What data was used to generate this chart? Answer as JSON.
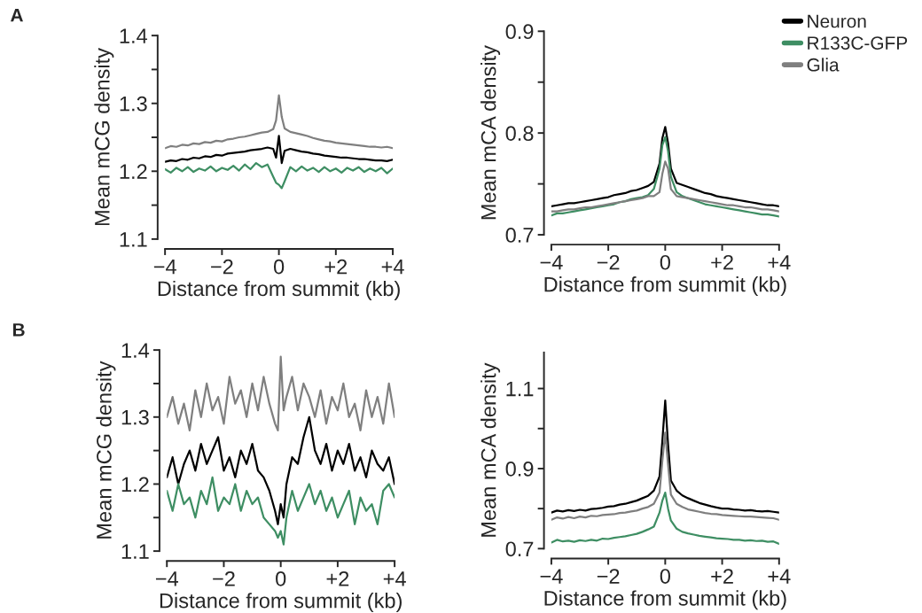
{
  "chart_data": [
    {
      "type": "line",
      "annotations": [
        "A"
      ],
      "xlabel": "Distance from summit (kb)",
      "ylabel": "Mean mCG density",
      "xlim": [
        -4,
        4
      ],
      "xticks": [
        {
          "value": -4,
          "label": "−4"
        },
        {
          "value": -2,
          "label": "−2"
        },
        0,
        {
          "value": 2,
          "label": "+2"
        },
        {
          "value": 4,
          "label": "+4"
        }
      ],
      "ylim": [
        1.1,
        1.4
      ],
      "yticks": [
        1.1,
        {
          "value": 1.15,
          "label": null
        },
        1.2,
        {
          "value": 1.25,
          "label": null
        },
        1.3,
        {
          "value": 1.35,
          "label": null
        },
        1.4
      ],
      "grid": false,
      "legend": false,
      "x": [
        -4,
        -3.8,
        -3.6,
        -3.4,
        -3.2,
        -3,
        -2.8,
        -2.6,
        -2.4,
        -2.2,
        -2,
        -1.8,
        -1.6,
        -1.4,
        -1.2,
        -1,
        -0.8,
        -0.6,
        -0.4,
        -0.2,
        -0.1,
        0,
        0.1,
        0.2,
        0.4,
        0.6,
        0.8,
        1,
        1.2,
        1.4,
        1.6,
        1.8,
        2,
        2.2,
        2.4,
        2.6,
        2.8,
        3,
        3.2,
        3.4,
        3.6,
        3.8,
        4
      ],
      "series": [
        {
          "color": "#7f7f7f",
          "values": [
            1.234,
            1.237,
            1.236,
            1.239,
            1.238,
            1.241,
            1.24,
            1.243,
            1.242,
            1.245,
            1.244,
            1.247,
            1.248,
            1.25,
            1.251,
            1.253,
            1.255,
            1.257,
            1.258,
            1.262,
            1.275,
            1.312,
            1.28,
            1.263,
            1.258,
            1.256,
            1.254,
            1.252,
            1.249,
            1.247,
            1.245,
            1.244,
            1.242,
            1.241,
            1.24,
            1.239,
            1.238,
            1.237,
            1.236,
            1.236,
            1.235,
            1.236,
            1.234
          ]
        },
        {
          "color": "#000000",
          "values": [
            1.214,
            1.216,
            1.215,
            1.218,
            1.217,
            1.22,
            1.219,
            1.222,
            1.221,
            1.224,
            1.223,
            1.226,
            1.227,
            1.228,
            1.229,
            1.231,
            1.232,
            1.233,
            1.235,
            1.233,
            1.22,
            1.252,
            1.212,
            1.23,
            1.233,
            1.231,
            1.229,
            1.228,
            1.226,
            1.225,
            1.223,
            1.222,
            1.221,
            1.22,
            1.22,
            1.219,
            1.218,
            1.218,
            1.217,
            1.216,
            1.216,
            1.215,
            1.217
          ]
        },
        {
          "color": "#3e8e63",
          "values": [
            1.203,
            1.198,
            1.205,
            1.2,
            1.206,
            1.199,
            1.204,
            1.201,
            1.207,
            1.2,
            1.205,
            1.202,
            1.208,
            1.201,
            1.21,
            1.203,
            1.212,
            1.206,
            1.21,
            1.192,
            1.183,
            1.18,
            1.175,
            1.185,
            1.206,
            1.2,
            1.207,
            1.201,
            1.205,
            1.199,
            1.206,
            1.2,
            1.204,
            1.198,
            1.205,
            1.201,
            1.206,
            1.199,
            1.204,
            1.2,
            1.205,
            1.197,
            1.204
          ]
        }
      ]
    },
    {
      "type": "line",
      "xlabel": "Distance from summit (kb)",
      "ylabel": "Mean mCA density",
      "xlim": [
        -4,
        4
      ],
      "xticks": [
        {
          "value": -4,
          "label": "−4"
        },
        {
          "value": -2,
          "label": "−2"
        },
        0,
        {
          "value": 2,
          "label": "+2"
        },
        {
          "value": 4,
          "label": "+4"
        }
      ],
      "ylim": [
        0.7,
        0.9
      ],
      "yticks": [
        0.7,
        {
          "value": 0.75,
          "label": null
        },
        0.8,
        {
          "value": 0.85,
          "label": null
        },
        0.9
      ],
      "grid": false,
      "legend": "top right",
      "x": [
        -4,
        -3.8,
        -3.6,
        -3.4,
        -3.2,
        -3,
        -2.8,
        -2.6,
        -2.4,
        -2.2,
        -2,
        -1.8,
        -1.6,
        -1.4,
        -1.2,
        -1,
        -0.8,
        -0.6,
        -0.4,
        -0.2,
        -0.1,
        0,
        0.1,
        0.2,
        0.4,
        0.6,
        0.8,
        1,
        1.2,
        1.4,
        1.6,
        1.8,
        2,
        2.2,
        2.4,
        2.6,
        2.8,
        3,
        3.2,
        3.4,
        3.6,
        3.8,
        4
      ],
      "series": [
        {
          "name": "Neuron",
          "color": "#000000",
          "values": [
            0.728,
            0.729,
            0.73,
            0.731,
            0.731,
            0.732,
            0.733,
            0.734,
            0.735,
            0.736,
            0.737,
            0.739,
            0.74,
            0.741,
            0.743,
            0.744,
            0.746,
            0.748,
            0.752,
            0.77,
            0.795,
            0.806,
            0.79,
            0.765,
            0.751,
            0.749,
            0.747,
            0.745,
            0.743,
            0.741,
            0.74,
            0.738,
            0.737,
            0.736,
            0.735,
            0.734,
            0.733,
            0.732,
            0.731,
            0.73,
            0.729,
            0.729,
            0.728
          ]
        },
        {
          "name": "R133C-GFP",
          "color": "#3e8e63",
          "values": [
            0.719,
            0.721,
            0.721,
            0.722,
            0.723,
            0.724,
            0.725,
            0.726,
            0.727,
            0.728,
            0.729,
            0.73,
            0.732,
            0.733,
            0.735,
            0.736,
            0.737,
            0.739,
            0.745,
            0.765,
            0.788,
            0.796,
            0.782,
            0.757,
            0.742,
            0.738,
            0.736,
            0.734,
            0.732,
            0.73,
            0.729,
            0.728,
            0.727,
            0.726,
            0.725,
            0.724,
            0.723,
            0.722,
            0.721,
            0.72,
            0.72,
            0.719,
            0.718
          ]
        },
        {
          "name": "Glia",
          "color": "#7f7f7f",
          "values": [
            0.723,
            0.723,
            0.724,
            0.725,
            0.725,
            0.726,
            0.727,
            0.727,
            0.728,
            0.729,
            0.73,
            0.731,
            0.732,
            0.733,
            0.734,
            0.735,
            0.736,
            0.738,
            0.738,
            0.742,
            0.76,
            0.772,
            0.765,
            0.745,
            0.738,
            0.737,
            0.736,
            0.735,
            0.734,
            0.733,
            0.732,
            0.731,
            0.73,
            0.729,
            0.729,
            0.728,
            0.727,
            0.727,
            0.726,
            0.725,
            0.725,
            0.724,
            0.723
          ]
        }
      ]
    },
    {
      "type": "line",
      "annotations": [
        "B"
      ],
      "xlabel": "Distance from summit (kb)",
      "ylabel": "Mean mCG density",
      "xlim": [
        -4,
        4
      ],
      "xticks": [
        {
          "value": -4,
          "label": "−4"
        },
        {
          "value": -2,
          "label": "−2"
        },
        0,
        {
          "value": 2,
          "label": "+2"
        },
        {
          "value": 4,
          "label": "+4"
        }
      ],
      "ylim": [
        1.1,
        1.4
      ],
      "yticks": [
        1.1,
        {
          "value": 1.15,
          "label": null
        },
        1.2,
        {
          "value": 1.25,
          "label": null
        },
        1.3,
        {
          "value": 1.35,
          "label": null
        },
        1.4
      ],
      "grid": false,
      "legend": false,
      "x": [
        -4,
        -3.8,
        -3.6,
        -3.4,
        -3.2,
        -3,
        -2.8,
        -2.6,
        -2.4,
        -2.2,
        -2,
        -1.8,
        -1.6,
        -1.4,
        -1.2,
        -1,
        -0.8,
        -0.6,
        -0.4,
        -0.2,
        -0.1,
        0,
        0.1,
        0.2,
        0.4,
        0.6,
        0.8,
        1,
        1.2,
        1.4,
        1.6,
        1.8,
        2,
        2.2,
        2.4,
        2.6,
        2.8,
        3,
        3.2,
        3.4,
        3.6,
        3.8,
        4
      ],
      "series": [
        {
          "color": "#7f7f7f",
          "values": [
            1.3,
            1.33,
            1.29,
            1.32,
            1.28,
            1.34,
            1.3,
            1.35,
            1.31,
            1.33,
            1.29,
            1.36,
            1.32,
            1.34,
            1.3,
            1.35,
            1.31,
            1.36,
            1.32,
            1.29,
            1.28,
            1.39,
            1.31,
            1.33,
            1.36,
            1.31,
            1.35,
            1.33,
            1.3,
            1.34,
            1.29,
            1.33,
            1.31,
            1.35,
            1.3,
            1.32,
            1.28,
            1.34,
            1.3,
            1.33,
            1.29,
            1.35,
            1.3
          ]
        },
        {
          "color": "#000000",
          "values": [
            1.21,
            1.24,
            1.2,
            1.23,
            1.25,
            1.22,
            1.26,
            1.23,
            1.25,
            1.27,
            1.22,
            1.24,
            1.21,
            1.25,
            1.23,
            1.26,
            1.22,
            1.21,
            1.19,
            1.16,
            1.14,
            1.17,
            1.15,
            1.2,
            1.24,
            1.23,
            1.27,
            1.3,
            1.25,
            1.23,
            1.26,
            1.22,
            1.25,
            1.23,
            1.26,
            1.22,
            1.24,
            1.21,
            1.25,
            1.23,
            1.22,
            1.24,
            1.2
          ]
        },
        {
          "color": "#3e8e63",
          "values": [
            1.19,
            1.16,
            1.2,
            1.17,
            1.18,
            1.15,
            1.19,
            1.17,
            1.21,
            1.16,
            1.18,
            1.17,
            1.2,
            1.16,
            1.19,
            1.17,
            1.18,
            1.15,
            1.14,
            1.13,
            1.12,
            1.13,
            1.11,
            1.15,
            1.19,
            1.16,
            1.18,
            1.2,
            1.17,
            1.19,
            1.16,
            1.18,
            1.15,
            1.17,
            1.19,
            1.14,
            1.18,
            1.16,
            1.17,
            1.14,
            1.19,
            1.2,
            1.18
          ]
        }
      ]
    },
    {
      "type": "line",
      "xlabel": "Distance from summit (kb)",
      "ylabel": "Mean mCA density",
      "xlim": [
        -4,
        4
      ],
      "xticks": [
        {
          "value": -4,
          "label": "−4"
        },
        {
          "value": -2,
          "label": "−2"
        },
        0,
        {
          "value": 2,
          "label": "+2"
        },
        {
          "value": 4,
          "label": "+4"
        }
      ],
      "ylim": [
        0.7,
        1.19
      ],
      "yticks": [
        0.7,
        {
          "value": 0.8,
          "label": null
        },
        0.9,
        {
          "value": 1.0,
          "label": null
        },
        1.1
      ],
      "grid": false,
      "legend": false,
      "x": [
        -4,
        -3.8,
        -3.6,
        -3.4,
        -3.2,
        -3,
        -2.8,
        -2.6,
        -2.4,
        -2.2,
        -2,
        -1.8,
        -1.6,
        -1.4,
        -1.2,
        -1,
        -0.8,
        -0.6,
        -0.4,
        -0.2,
        -0.1,
        0,
        0.1,
        0.2,
        0.4,
        0.6,
        0.8,
        1,
        1.2,
        1.4,
        1.6,
        1.8,
        2,
        2.2,
        2.4,
        2.6,
        2.8,
        3,
        3.2,
        3.4,
        3.6,
        3.8,
        4
      ],
      "series": [
        {
          "color": "#000000",
          "values": [
            0.79,
            0.795,
            0.793,
            0.796,
            0.794,
            0.797,
            0.795,
            0.799,
            0.8,
            0.802,
            0.805,
            0.806,
            0.81,
            0.812,
            0.816,
            0.82,
            0.826,
            0.832,
            0.845,
            0.88,
            0.97,
            1.07,
            0.96,
            0.87,
            0.845,
            0.833,
            0.826,
            0.82,
            0.814,
            0.81,
            0.806,
            0.803,
            0.8,
            0.8,
            0.798,
            0.797,
            0.795,
            0.796,
            0.794,
            0.793,
            0.794,
            0.792,
            0.79
          ]
        },
        {
          "color": "#7f7f7f",
          "values": [
            0.772,
            0.778,
            0.775,
            0.779,
            0.776,
            0.78,
            0.778,
            0.782,
            0.781,
            0.784,
            0.785,
            0.786,
            0.789,
            0.79,
            0.793,
            0.795,
            0.8,
            0.804,
            0.812,
            0.84,
            0.92,
            0.99,
            0.91,
            0.835,
            0.812,
            0.804,
            0.798,
            0.795,
            0.792,
            0.789,
            0.787,
            0.786,
            0.784,
            0.783,
            0.782,
            0.781,
            0.78,
            0.78,
            0.779,
            0.778,
            0.777,
            0.776,
            0.772
          ]
        },
        {
          "color": "#3e8e63",
          "values": [
            0.715,
            0.722,
            0.718,
            0.72,
            0.717,
            0.721,
            0.719,
            0.722,
            0.72,
            0.725,
            0.724,
            0.727,
            0.729,
            0.731,
            0.734,
            0.737,
            0.742,
            0.748,
            0.755,
            0.79,
            0.82,
            0.84,
            0.8,
            0.77,
            0.75,
            0.742,
            0.738,
            0.735,
            0.732,
            0.73,
            0.728,
            0.726,
            0.725,
            0.724,
            0.722,
            0.722,
            0.72,
            0.721,
            0.719,
            0.72,
            0.717,
            0.718,
            0.712
          ]
        }
      ]
    }
  ]
}
